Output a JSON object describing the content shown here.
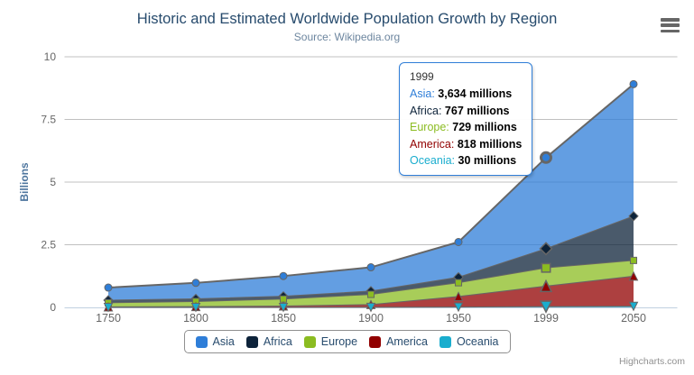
{
  "chart_data": {
    "type": "area",
    "stacking": "normal",
    "title": "Historic and Estimated Worldwide Population Growth by Region",
    "subtitle": "Source: Wikipedia.org",
    "ylabel": "Billions",
    "unit": "millions",
    "categories": [
      "1750",
      "1800",
      "1850",
      "1900",
      "1950",
      "1999",
      "2050"
    ],
    "series": [
      {
        "name": "Asia",
        "color": "#2f7ed8",
        "marker": "circle",
        "values": [
          502,
          635,
          809,
          947,
          1402,
          3634,
          5268
        ]
      },
      {
        "name": "Africa",
        "color": "#0d233a",
        "marker": "diamond",
        "values": [
          106,
          107,
          111,
          133,
          221,
          767,
          1766
        ]
      },
      {
        "name": "Europe",
        "color": "#8bbc21",
        "marker": "square",
        "values": [
          163,
          203,
          276,
          408,
          547,
          729,
          628
        ]
      },
      {
        "name": "America",
        "color": "#910000",
        "marker": "triangle",
        "values": [
          18,
          31,
          54,
          105,
          425,
          818,
          1201
        ]
      },
      {
        "name": "Oceania",
        "color": "#1aadce",
        "marker": "triangle-down",
        "values": [
          2,
          2,
          2,
          6,
          13,
          30,
          46
        ]
      }
    ],
    "yticks": [
      0,
      2.5,
      5,
      7.5,
      10
    ],
    "ylim": [
      0,
      10
    ],
    "grid": true,
    "legend_position": "bottom",
    "line_color": "#666666",
    "fill_opacity": 0.75,
    "hovered_category_index": 5,
    "hovered_series": "Asia"
  },
  "tooltip": {
    "header": "1999",
    "border_color": "#2f7ed8",
    "rows": [
      {
        "name": "Asia",
        "color": "#2f7ed8",
        "value": "3,634 millions"
      },
      {
        "name": "Africa",
        "color": "#0d233a",
        "value": "767 millions"
      },
      {
        "name": "Europe",
        "color": "#8bbc21",
        "value": "729 millions"
      },
      {
        "name": "America",
        "color": "#910000",
        "value": "818 millions"
      },
      {
        "name": "Oceania",
        "color": "#1aadce",
        "value": "30 millions"
      }
    ]
  },
  "credits": "Highcharts.com",
  "theme": {
    "title_color": "#274b6d",
    "subtitle_color": "#6d869f",
    "axis_label_color": "#666666",
    "axis_title_color": "#4d759e",
    "grid_color": "#c0c0c0",
    "axis_line_color": "#c0d0e0",
    "legend_text_color": "#274b6d",
    "legend_border_color": "#909090",
    "credits_color": "#909090",
    "menu_icon_color": "#666666",
    "background": "#ffffff"
  }
}
